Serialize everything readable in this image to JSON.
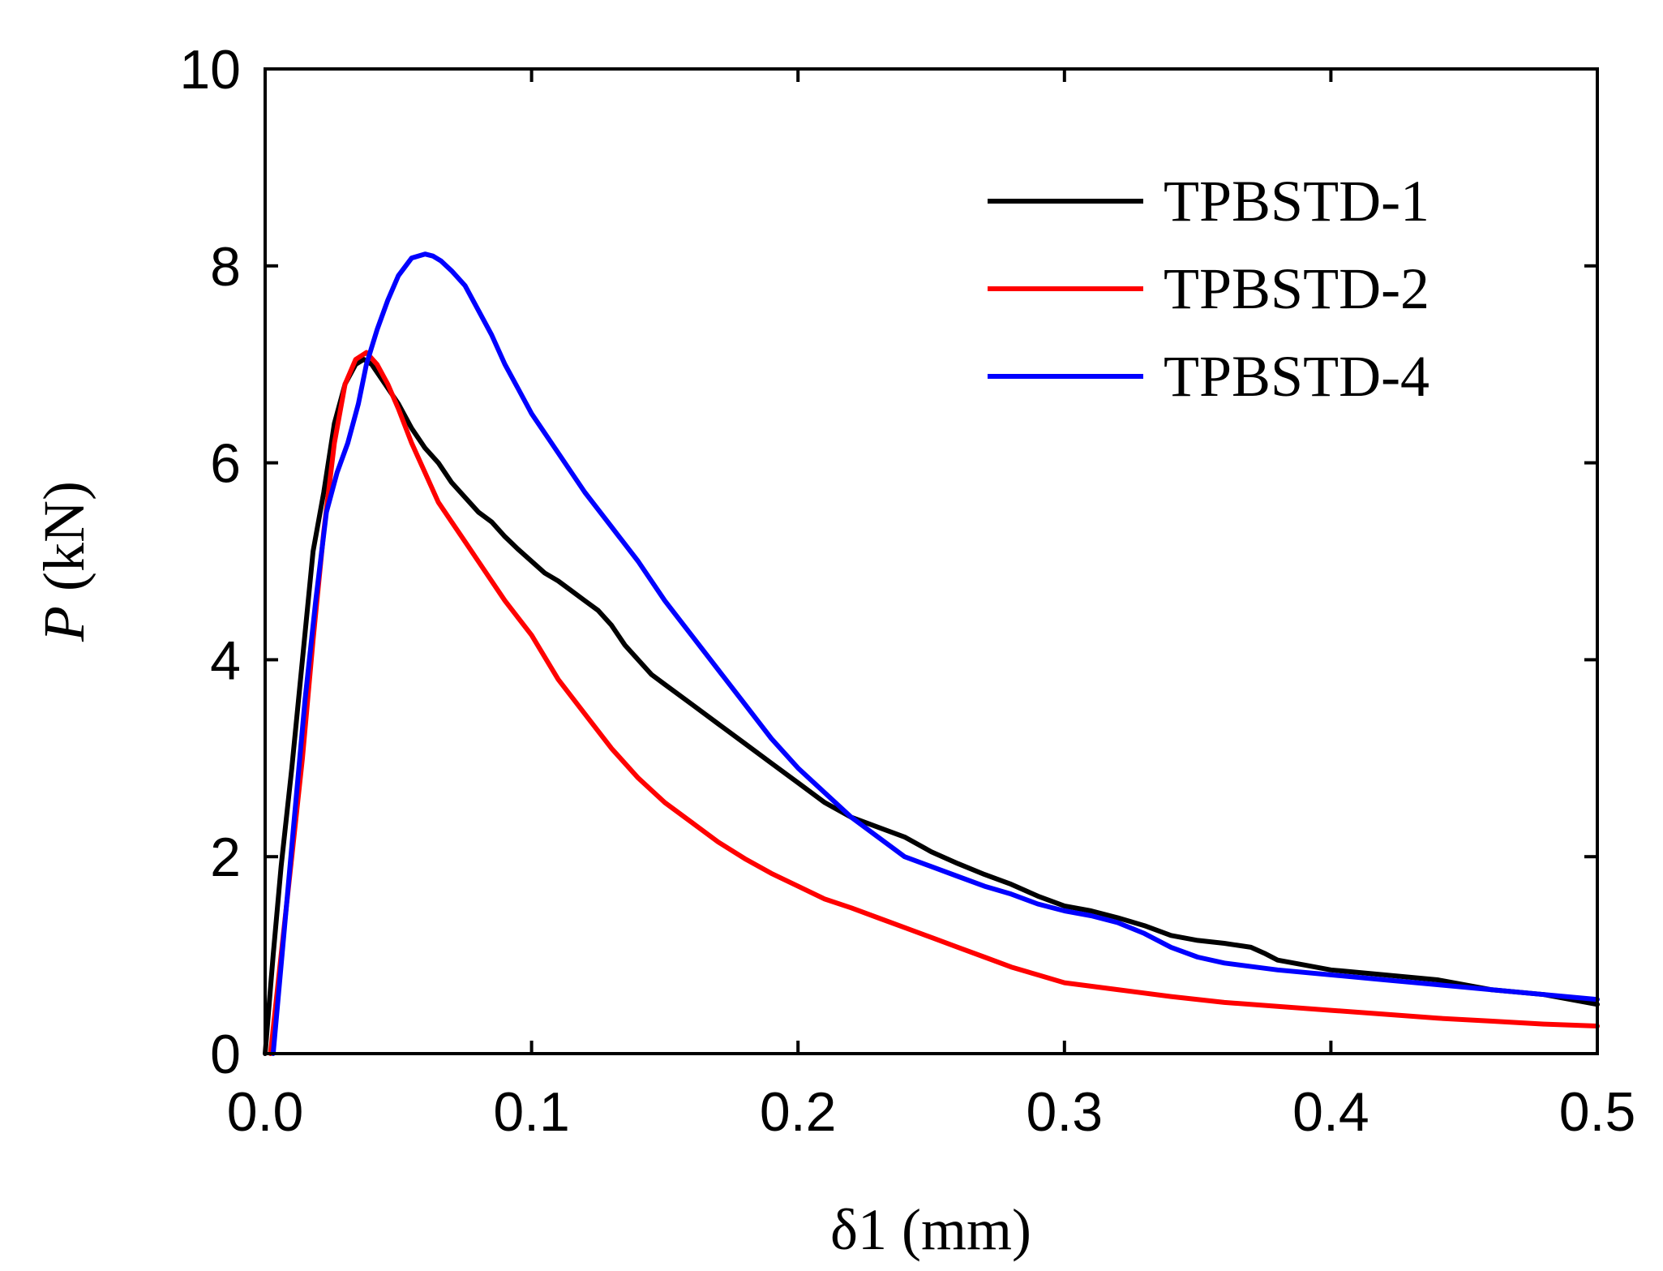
{
  "chart_data": {
    "type": "line",
    "title": "",
    "xlabel": "δ1 (mm)",
    "ylabel_italic": "P",
    "ylabel_rest": " (kN)",
    "xlim": [
      0,
      0.5
    ],
    "ylim": [
      0,
      10
    ],
    "xticks": [
      0.0,
      0.1,
      0.2,
      0.3,
      0.4,
      0.5
    ],
    "xtick_labels": [
      "0.0",
      "0.1",
      "0.2",
      "0.3",
      "0.4",
      "0.5"
    ],
    "yticks": [
      0,
      2,
      4,
      6,
      8,
      10
    ],
    "ytick_labels": [
      "0",
      "2",
      "4",
      "6",
      "8",
      "10"
    ],
    "grid": false,
    "legend_position": "top-right",
    "series": [
      {
        "name": "TPBSTD-1",
        "color": "#000000",
        "x": [
          0,
          0.003,
          0.006,
          0.01,
          0.014,
          0.018,
          0.022,
          0.026,
          0.03,
          0.034,
          0.037,
          0.04,
          0.045,
          0.05,
          0.055,
          0.06,
          0.065,
          0.07,
          0.075,
          0.08,
          0.085,
          0.09,
          0.095,
          0.1,
          0.105,
          0.11,
          0.115,
          0.12,
          0.125,
          0.13,
          0.135,
          0.14,
          0.145,
          0.15,
          0.16,
          0.17,
          0.18,
          0.19,
          0.2,
          0.21,
          0.22,
          0.23,
          0.24,
          0.25,
          0.26,
          0.27,
          0.28,
          0.29,
          0.3,
          0.31,
          0.32,
          0.33,
          0.34,
          0.35,
          0.36,
          0.37,
          0.375,
          0.38,
          0.39,
          0.4,
          0.42,
          0.44,
          0.46,
          0.48,
          0.5
        ],
        "y": [
          0,
          1.0,
          1.9,
          2.9,
          4.0,
          5.1,
          5.7,
          6.4,
          6.8,
          7.0,
          7.05,
          7.0,
          6.8,
          6.6,
          6.35,
          6.15,
          6.0,
          5.8,
          5.65,
          5.5,
          5.4,
          5.25,
          5.12,
          5.0,
          4.88,
          4.8,
          4.7,
          4.6,
          4.5,
          4.35,
          4.15,
          4.0,
          3.85,
          3.75,
          3.55,
          3.35,
          3.15,
          2.95,
          2.75,
          2.55,
          2.4,
          2.3,
          2.2,
          2.05,
          1.93,
          1.82,
          1.72,
          1.6,
          1.5,
          1.45,
          1.38,
          1.3,
          1.2,
          1.15,
          1.12,
          1.08,
          1.02,
          0.95,
          0.9,
          0.85,
          0.8,
          0.75,
          0.65,
          0.6,
          0.5
        ]
      },
      {
        "name": "TPBSTD-2",
        "color": "#ff0000",
        "x": [
          0.002,
          0.006,
          0.01,
          0.014,
          0.018,
          0.022,
          0.026,
          0.03,
          0.034,
          0.038,
          0.042,
          0.046,
          0.05,
          0.055,
          0.06,
          0.065,
          0.07,
          0.075,
          0.08,
          0.09,
          0.1,
          0.11,
          0.12,
          0.13,
          0.14,
          0.15,
          0.16,
          0.17,
          0.18,
          0.19,
          0.2,
          0.21,
          0.22,
          0.23,
          0.24,
          0.25,
          0.26,
          0.27,
          0.28,
          0.29,
          0.3,
          0.32,
          0.34,
          0.36,
          0.38,
          0.4,
          0.42,
          0.44,
          0.46,
          0.48,
          0.5
        ],
        "y": [
          0,
          1.0,
          2.0,
          3.0,
          4.2,
          5.3,
          6.2,
          6.8,
          7.05,
          7.12,
          7.0,
          6.8,
          6.55,
          6.2,
          5.9,
          5.6,
          5.4,
          5.2,
          5.0,
          4.6,
          4.25,
          3.8,
          3.45,
          3.1,
          2.8,
          2.55,
          2.35,
          2.15,
          1.98,
          1.83,
          1.7,
          1.57,
          1.48,
          1.38,
          1.28,
          1.18,
          1.08,
          0.98,
          0.88,
          0.8,
          0.72,
          0.65,
          0.58,
          0.52,
          0.48,
          0.44,
          0.4,
          0.36,
          0.33,
          0.3,
          0.28
        ]
      },
      {
        "name": "TPBSTD-4",
        "color": "#0000ff",
        "x": [
          0.003,
          0.007,
          0.011,
          0.015,
          0.019,
          0.023,
          0.027,
          0.031,
          0.035,
          0.038,
          0.042,
          0.046,
          0.05,
          0.055,
          0.06,
          0.063,
          0.066,
          0.07,
          0.075,
          0.08,
          0.085,
          0.09,
          0.095,
          0.1,
          0.11,
          0.12,
          0.13,
          0.14,
          0.15,
          0.16,
          0.17,
          0.18,
          0.19,
          0.2,
          0.21,
          0.22,
          0.23,
          0.24,
          0.25,
          0.26,
          0.27,
          0.28,
          0.29,
          0.3,
          0.31,
          0.32,
          0.33,
          0.34,
          0.35,
          0.36,
          0.38,
          0.4,
          0.42,
          0.44,
          0.46,
          0.48,
          0.5
        ],
        "y": [
          0,
          1.2,
          2.4,
          3.6,
          4.6,
          5.5,
          5.9,
          6.2,
          6.6,
          7.0,
          7.35,
          7.65,
          7.9,
          8.08,
          8.12,
          8.1,
          8.05,
          7.95,
          7.8,
          7.55,
          7.3,
          7.0,
          6.75,
          6.5,
          6.1,
          5.7,
          5.35,
          5.0,
          4.6,
          4.25,
          3.9,
          3.55,
          3.2,
          2.9,
          2.65,
          2.4,
          2.2,
          2.0,
          1.9,
          1.8,
          1.7,
          1.62,
          1.52,
          1.45,
          1.4,
          1.33,
          1.22,
          1.08,
          0.98,
          0.92,
          0.85,
          0.8,
          0.75,
          0.7,
          0.65,
          0.6,
          0.55
        ]
      }
    ]
  }
}
